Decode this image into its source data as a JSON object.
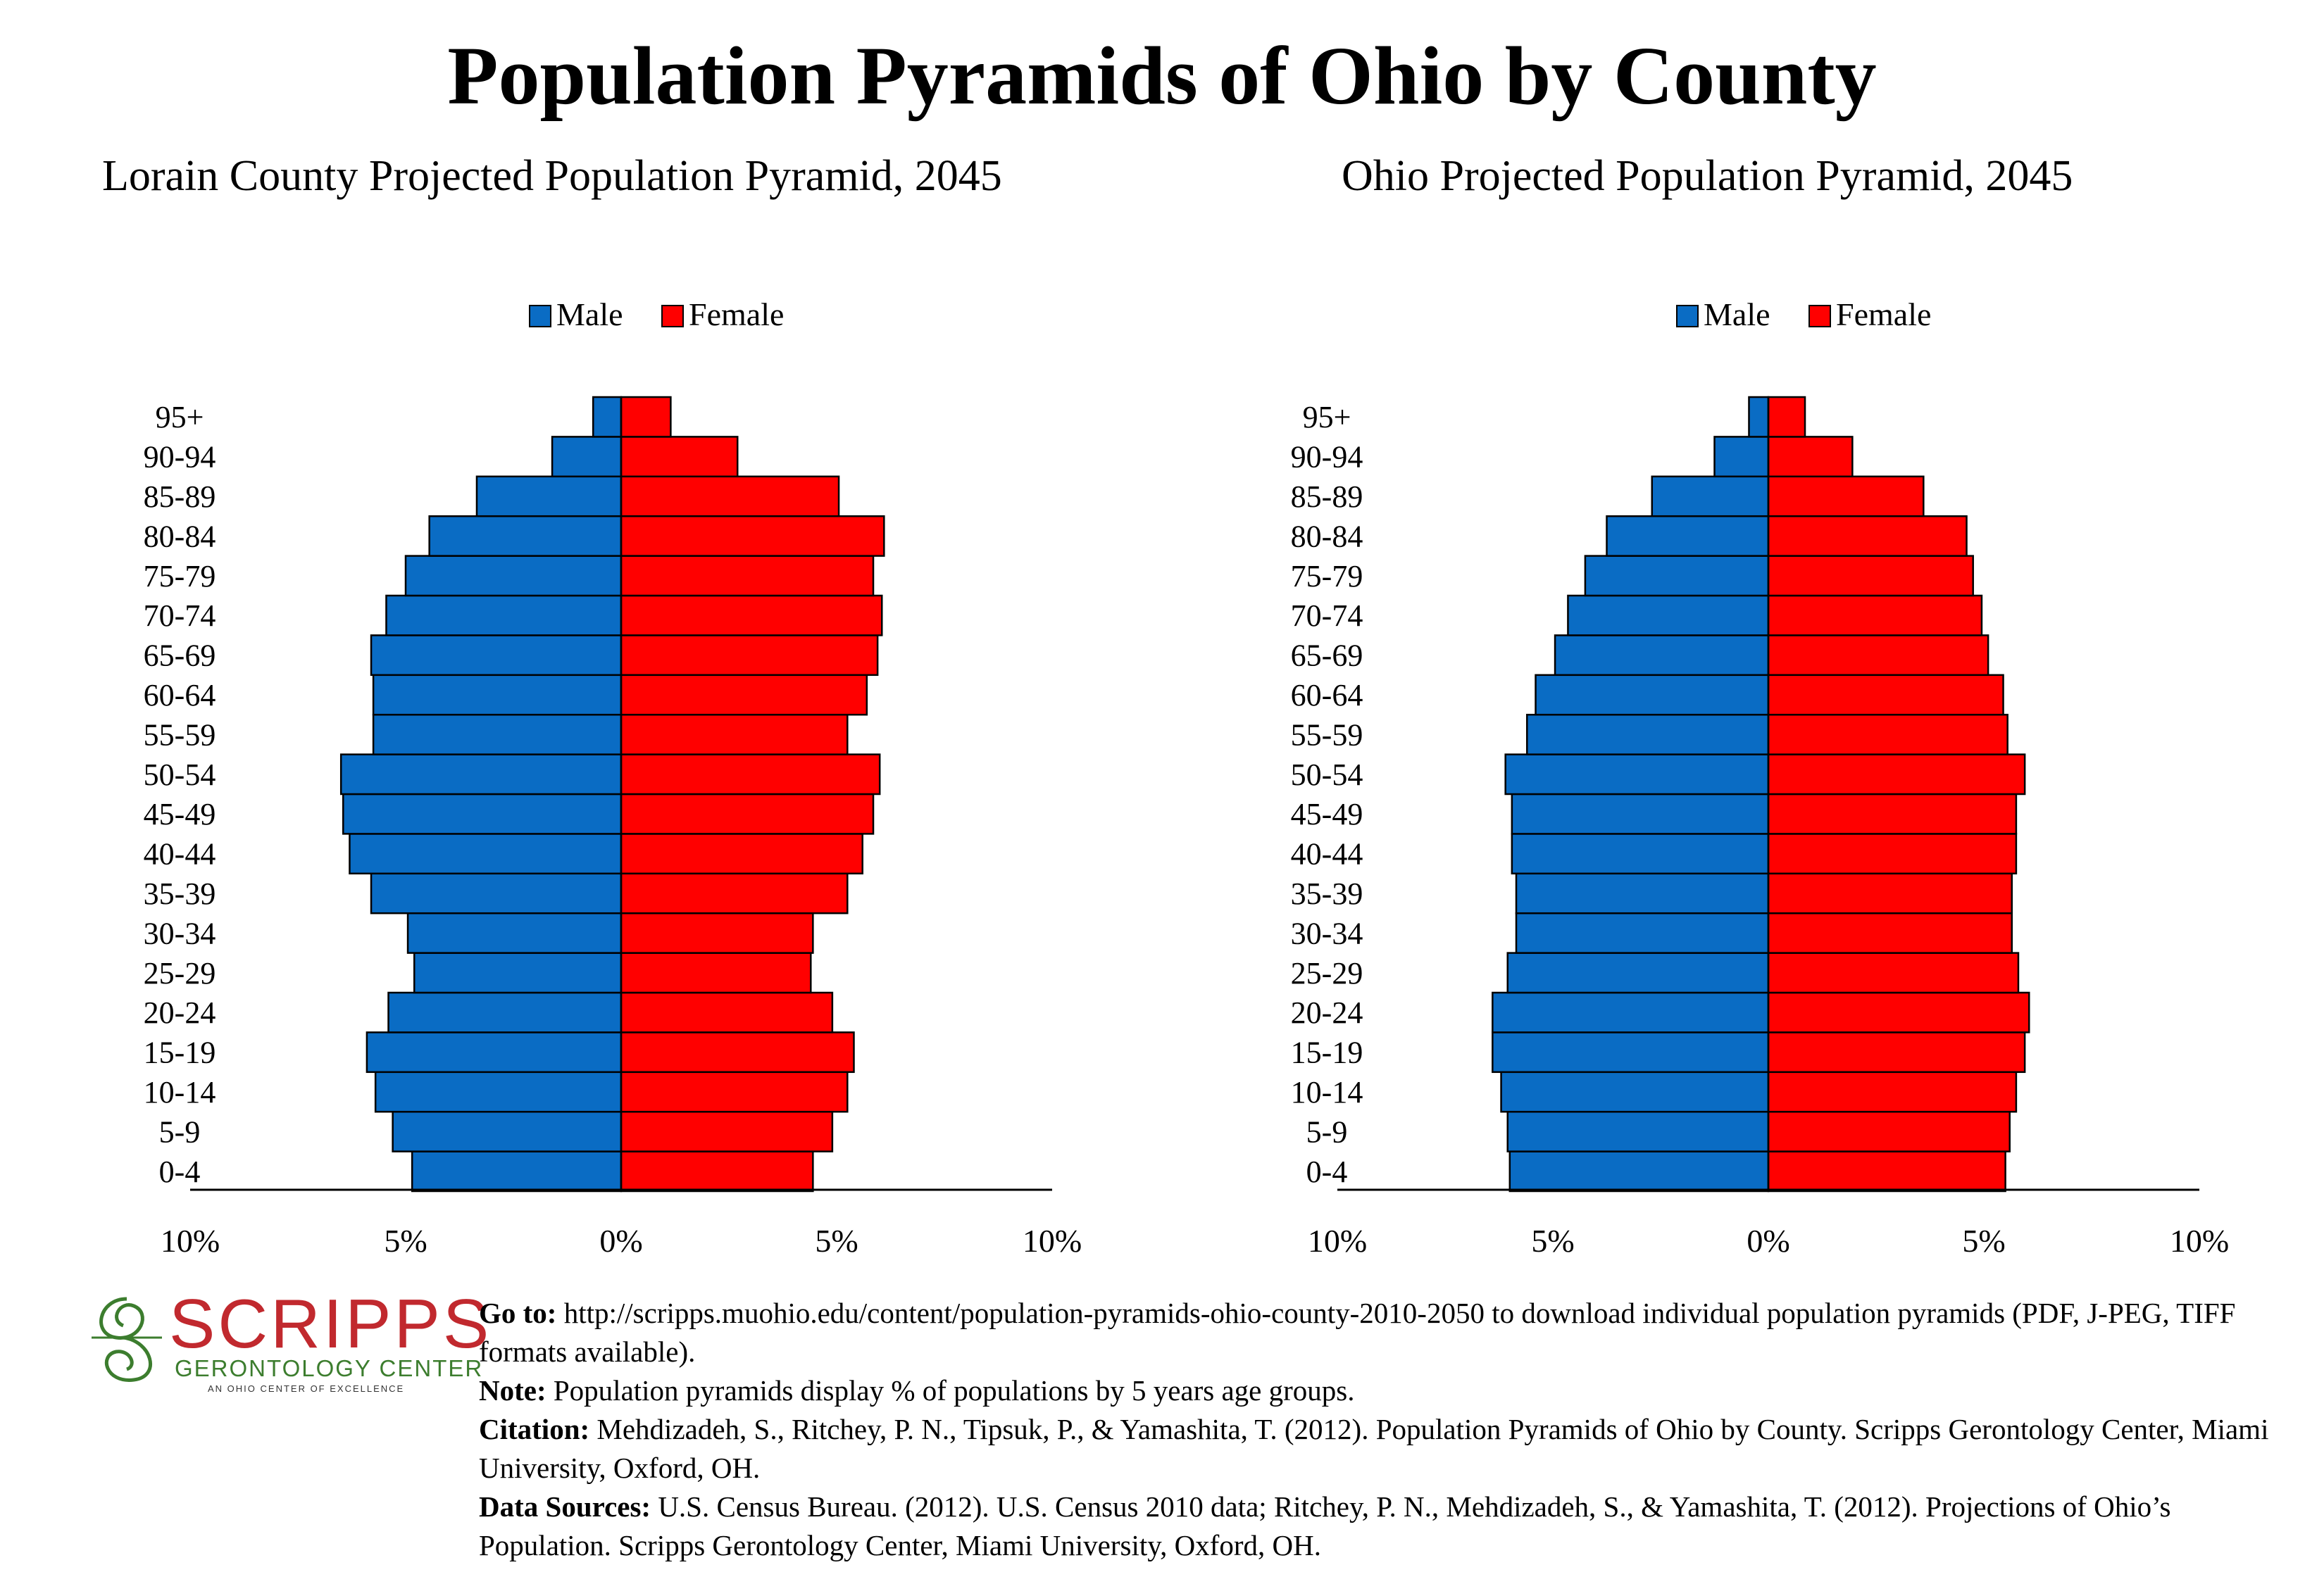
{
  "title": "Population Pyramids of Ohio by County",
  "colors": {
    "male": "#0a6cc4",
    "female": "#ff0000",
    "axis": "#000000",
    "logo_red": "#c1292e",
    "logo_green": "#3c7d2e"
  },
  "chart_data": [
    {
      "type": "bar",
      "orientation": "horizontal-pyramid",
      "title": "Lorain County Projected Population Pyramid, 2045",
      "legend": [
        "Male",
        "Female"
      ],
      "legend_position": "top-center",
      "categories": [
        "0-4",
        "5-9",
        "10-14",
        "15-19",
        "20-24",
        "25-29",
        "30-34",
        "35-39",
        "40-44",
        "45-49",
        "50-54",
        "55-59",
        "60-64",
        "65-69",
        "70-74",
        "75-79",
        "80-84",
        "85-89",
        "90-94",
        "95+"
      ],
      "series": [
        {
          "name": "Male",
          "values": [
            4.85,
            5.3,
            5.7,
            5.9,
            5.4,
            4.8,
            4.95,
            5.8,
            6.3,
            6.45,
            6.5,
            5.75,
            5.75,
            5.8,
            5.45,
            5.0,
            4.45,
            3.35,
            1.6,
            0.65
          ]
        },
        {
          "name": "Female",
          "values": [
            4.45,
            4.9,
            5.25,
            5.4,
            4.9,
            4.4,
            4.45,
            5.25,
            5.6,
            5.85,
            6.0,
            5.25,
            5.7,
            5.95,
            6.05,
            5.85,
            6.1,
            5.05,
            2.7,
            1.15
          ]
        }
      ],
      "xlim": [
        -10,
        10
      ],
      "tick_labels": [
        "10%",
        "5%",
        "0%",
        "5%",
        "10%"
      ],
      "grid": false
    },
    {
      "type": "bar",
      "orientation": "horizontal-pyramid",
      "title": "Ohio Projected Population Pyramid, 2045",
      "legend": [
        "Male",
        "Female"
      ],
      "legend_position": "top-center",
      "categories": [
        "0-4",
        "5-9",
        "10-14",
        "15-19",
        "20-24",
        "25-29",
        "30-34",
        "35-39",
        "40-44",
        "45-49",
        "50-54",
        "55-59",
        "60-64",
        "65-69",
        "70-74",
        "75-79",
        "80-84",
        "85-89",
        "90-94",
        "95+"
      ],
      "series": [
        {
          "name": "Male",
          "values": [
            6.0,
            6.05,
            6.2,
            6.4,
            6.4,
            6.05,
            5.85,
            5.85,
            5.95,
            5.95,
            6.1,
            5.6,
            5.4,
            4.95,
            4.65,
            4.25,
            3.75,
            2.7,
            1.25,
            0.45
          ]
        },
        {
          "name": "Female",
          "values": [
            5.5,
            5.6,
            5.75,
            5.95,
            6.05,
            5.8,
            5.65,
            5.65,
            5.75,
            5.75,
            5.95,
            5.55,
            5.45,
            5.1,
            4.95,
            4.75,
            4.6,
            3.6,
            1.95,
            0.85
          ]
        }
      ],
      "xlim": [
        -10,
        10
      ],
      "tick_labels": [
        "10%",
        "5%",
        "0%",
        "5%",
        "10%"
      ],
      "grid": false
    }
  ],
  "footer": {
    "goto_label": "Go to:",
    "goto_text": " http://scripps.muohio.edu/content/population-pyramids-ohio-county-2010-2050 to download individual population pyramids (PDF, J-PEG, TIFF formats available).",
    "note_label": "Note:",
    "note_text": " Population pyramids display % of populations by 5 years age groups.",
    "citation_label": "Citation:",
    "citation_text": " Mehdizadeh, S., Ritchey, P. N., Tipsuk, P., & Yamashita, T. (2012). Population Pyramids of Ohio by County. Scripps Gerontology Center, Miami University, Oxford, OH.",
    "sources_label": "Data Sources:",
    "sources_text": " U.S. Census Bureau. (2012). U.S. Census 2010 data; Ritchey, P. N., Mehdizadeh, S., & Yamashita, T. (2012). Projections of Ohio’s Population. Scripps Gerontology Center, Miami University, Oxford, OH."
  },
  "logo": {
    "word": "SCRIPPS",
    "sub": "GERONTOLOGY CENTER",
    "tag": "AN OHIO CENTER OF EXCELLENCE",
    "icon": "swirl-logo-icon"
  }
}
